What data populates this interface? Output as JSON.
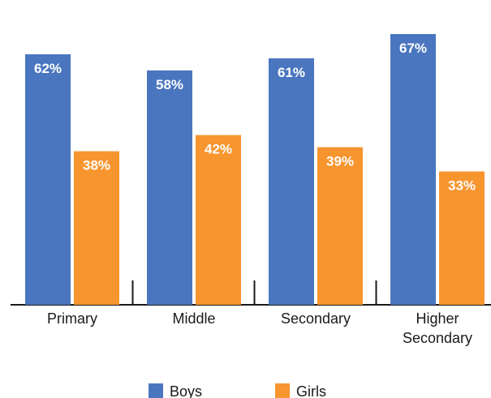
{
  "chart_data": {
    "type": "bar",
    "title": "",
    "xlabel": "",
    "ylabel": "",
    "ylim": [
      0,
      70
    ],
    "grid": false,
    "legend_position": "bottom",
    "categories": [
      [
        "Primary"
      ],
      [
        "Middle"
      ],
      [
        "Secondary"
      ],
      [
        "Higher",
        "Secondary"
      ]
    ],
    "series": [
      {
        "name": "Boys",
        "color": "#4a76bf",
        "values": [
          62,
          58,
          61,
          67
        ],
        "labels": [
          "62%",
          "58%",
          "61%",
          "67%"
        ]
      },
      {
        "name": "Girls",
        "color": "#f7952f",
        "values": [
          38,
          42,
          39,
          33
        ],
        "labels": [
          "38%",
          "42%",
          "39%",
          "33%"
        ]
      }
    ]
  }
}
